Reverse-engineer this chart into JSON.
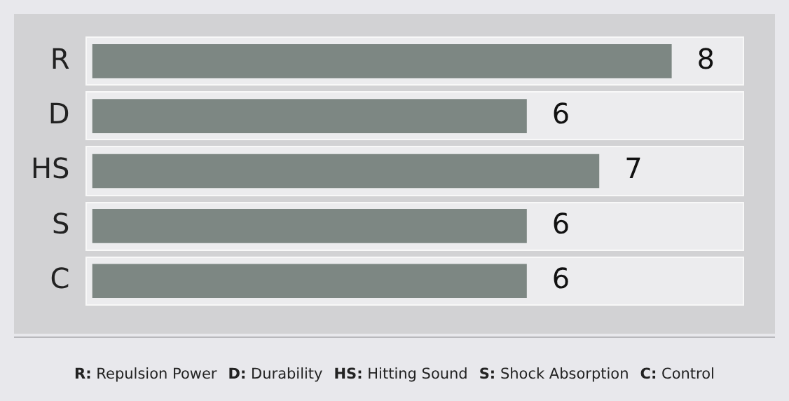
{
  "chart_data": {
    "type": "bar",
    "orientation": "horizontal",
    "categories": [
      "R",
      "D",
      "HS",
      "S",
      "C"
    ],
    "values": [
      8,
      6,
      7,
      6,
      6
    ],
    "color": "#7d8783",
    "data_labels": true,
    "tick_labels": "y",
    "legend": false,
    "annotations": [
      "R: Repulsion Power",
      "D: Durability",
      "HS: Hitting Sound",
      "S: Shock Absorption",
      "C: Control"
    ]
  }
}
